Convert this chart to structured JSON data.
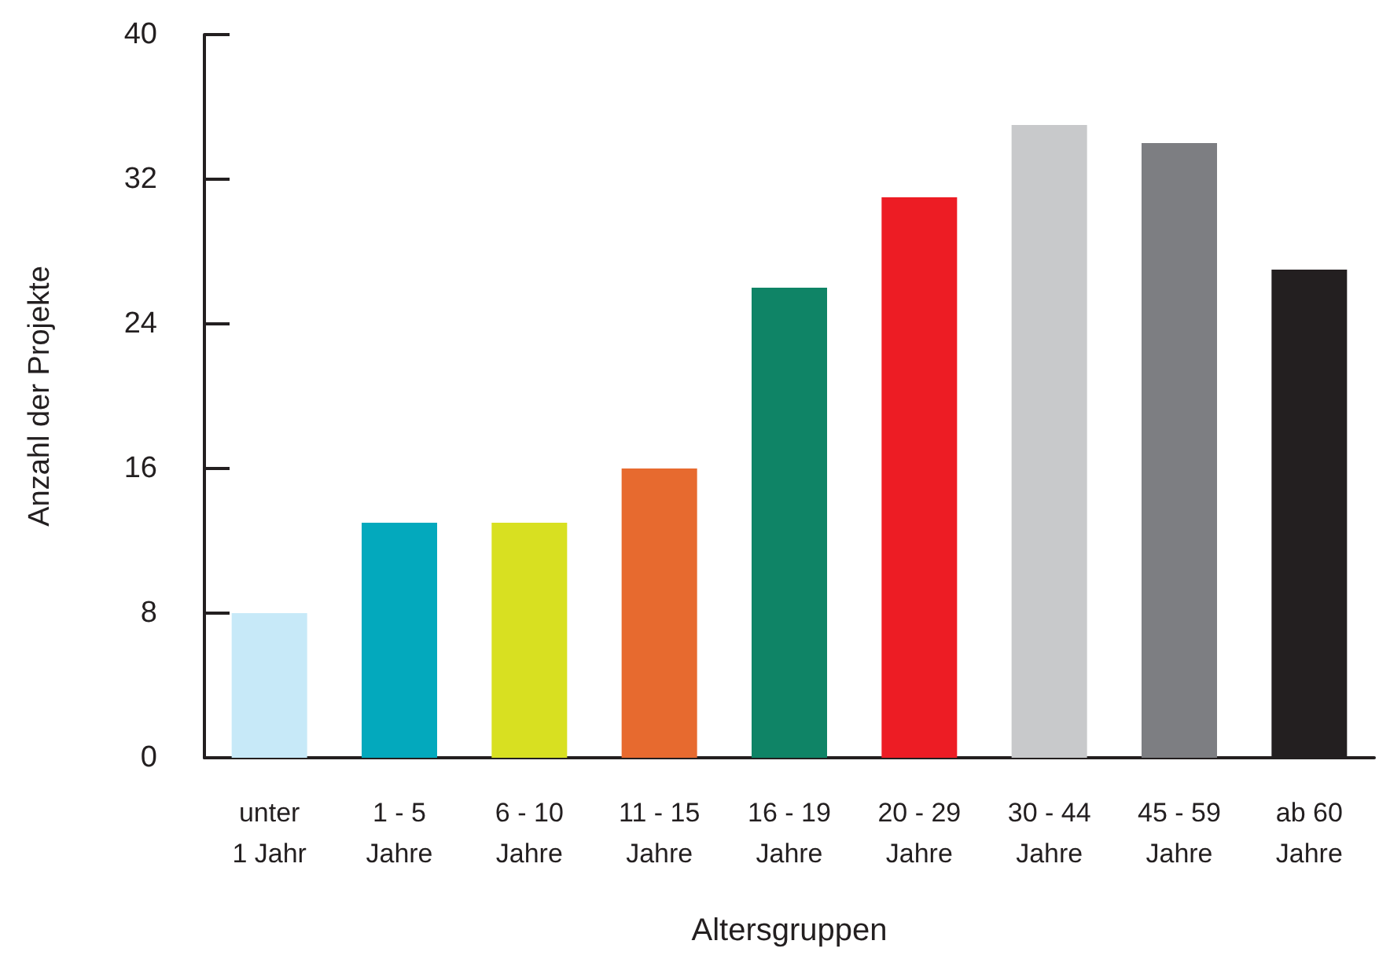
{
  "chart_data": {
    "type": "bar",
    "xlabel": "Altersgruppen",
    "ylabel": "Anzahl der Projekte",
    "categories": [
      "unter\n1 Jahr",
      "1 - 5\nJahre",
      "6 - 10\nJahre",
      "11 - 15\nJahre",
      "16 - 19\nJahre",
      "20 - 29\nJahre",
      "30 - 44\nJahre",
      "45 - 59\nJahre",
      "ab 60\nJahre"
    ],
    "values": [
      8,
      13,
      13,
      16,
      26,
      31,
      35,
      34,
      27
    ],
    "colors": [
      "#c7e9f8",
      "#03a9bd",
      "#d8e021",
      "#e76a2f",
      "#0f8466",
      "#ed1c24",
      "#c8c9cb",
      "#7d7e82",
      "#231f20"
    ],
    "ylim": [
      0,
      40
    ],
    "yticks": [
      0,
      8,
      16,
      24,
      32,
      40
    ],
    "grid": false
  }
}
